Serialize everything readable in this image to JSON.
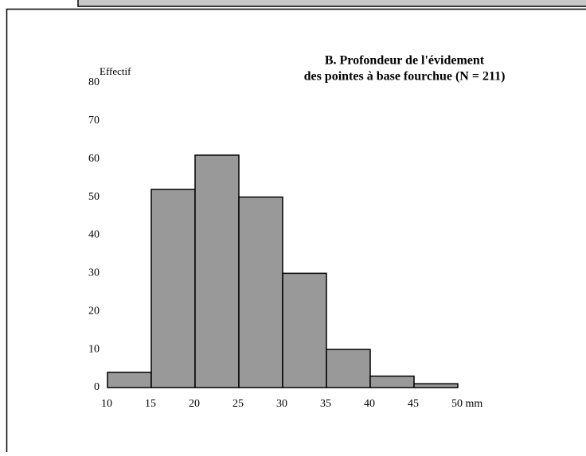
{
  "chart_data": {
    "type": "histogram",
    "title": [
      "B. Profondeur de l'évidement",
      "des pointes à base fourchue (N = 211)"
    ],
    "ylabel": "Effectif",
    "bins": [
      10,
      15,
      20,
      25,
      30,
      35,
      40,
      45,
      50
    ],
    "counts": [
      4,
      52,
      61,
      50,
      30,
      10,
      3,
      1
    ],
    "color": "#999999",
    "xlim": [
      10,
      50
    ],
    "xticks": [
      10,
      15,
      20,
      25,
      30,
      35,
      40,
      45,
      {
        "value": 50,
        "label": "50 mm"
      }
    ],
    "ylim": [
      0,
      80
    ],
    "yticks": [
      0,
      10,
      20,
      30,
      40,
      50,
      60,
      70,
      80
    ],
    "grid": false
  }
}
